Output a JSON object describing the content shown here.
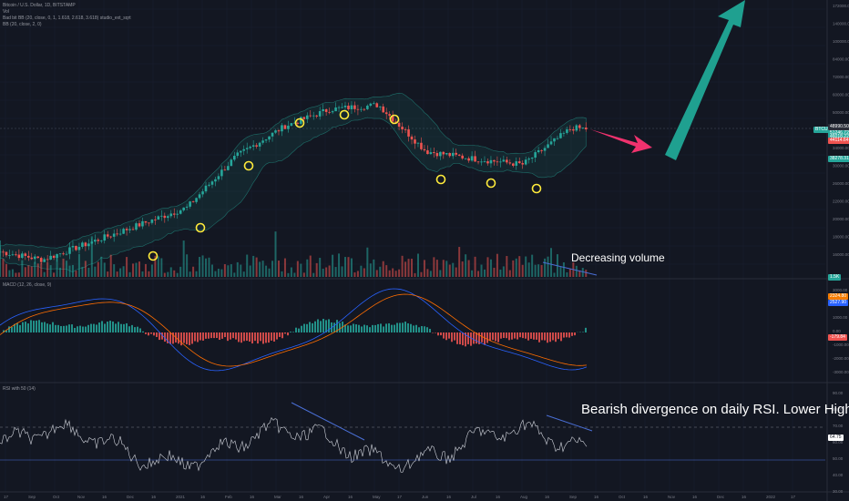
{
  "header": {
    "symbol_line": "Bitcoin / U.S. Dollar, 1D, BITSTAMP",
    "vol_line": "Vol",
    "boll_line": "Bad bit BB (20, close, 0, 1, 1.618, 2.618, 3.618) studio_ext_sqrt",
    "bb_line": "BB (20, close, 2, 0)"
  },
  "panes": {
    "macd_title": "MACD (12, 26, close, 9)",
    "rsi_title": "RSI with 50 (14)"
  },
  "annotations": {
    "volume_note": "Decreasing volume",
    "rsi_note": "Bearish divergence on daily RSI. Lower Highs"
  },
  "badges": [
    {
      "label": "BTCUSD",
      "color": "#26a69a"
    },
    {
      "label": "48990.50",
      "color": "#2a2e39"
    },
    {
      "label": "51246.72",
      "color": "#26a69a"
    },
    {
      "label": "46018.22",
      "color": "#26a69a"
    },
    {
      "label": "44114.64",
      "color": "#ef5350"
    },
    {
      "label": "38278.31",
      "color": "#26a69a"
    },
    {
      "label": "1.5K",
      "color": "#26a69a"
    },
    {
      "label": "2324.80",
      "color": "#f57c00"
    },
    {
      "label": "2527.90",
      "color": "#2962ff"
    },
    {
      "label": "-179.84",
      "color": "#ef5350"
    },
    {
      "label": "64.75",
      "color": "#ffffff"
    }
  ],
  "colors": {
    "up": "#26a69a",
    "down": "#ef5350",
    "band": "#1e6f6a",
    "circle": "#ffeb3b",
    "arrow_up": "#1fa090",
    "arrow_right": "#f0326e",
    "macd_line": "#2962ff",
    "signal_line": "#ff6d00",
    "rsi_line": "#d1d4dc",
    "trendline": "#4a6fd6"
  },
  "chart_data": [
    {
      "type": "candlestick",
      "title": "Bitcoin / U.S. Dollar, 1D, BITSTAMP",
      "scale": "log",
      "y_ticks": [
        "172000.00",
        "140000.00",
        "100000.00",
        "84000.00",
        "72000.00",
        "60000.00",
        "50000.00",
        "40000.00",
        "34000.00",
        "30000.00",
        "26000.00",
        "22000.00",
        "20000.00",
        "18000.00",
        "16000.00"
      ],
      "x_ticks": [
        "17",
        "Sep",
        "Oct",
        "Nov",
        "16",
        "Dec",
        "16",
        "2021",
        "16",
        "Feb",
        "16",
        "Mar",
        "16",
        "Apr",
        "16",
        "May",
        "17",
        "Jun",
        "16",
        "Jul",
        "16",
        "Aug",
        "16",
        "Sep",
        "16",
        "Oct",
        "16",
        "Nov",
        "16",
        "Dec",
        "16",
        "2022",
        "17"
      ],
      "key_points": [
        {
          "date": "Sep 2020",
          "close": 10500
        },
        {
          "date": "Dec 2020",
          "close": 19000
        },
        {
          "date": "Jan 2021",
          "close": 34000
        },
        {
          "date": "Feb 2021",
          "close": 48000
        },
        {
          "date": "Mar 2021",
          "close": 58000
        },
        {
          "date": "Apr 2021",
          "close": 61000
        },
        {
          "date": "May 2021",
          "close": 36000
        },
        {
          "date": "Jun 2021",
          "close": 33000
        },
        {
          "date": "Jul 2021",
          "close": 31000
        },
        {
          "date": "Aug 2021",
          "close": 47000
        }
      ]
    },
    {
      "type": "bar",
      "title": "MACD (12, 26, close, 9)",
      "y_ticks": [
        "3000.00",
        "2000.00",
        "1000.00",
        "0.00",
        "-1000.00",
        "-2000.00",
        "-3000.00"
      ]
    },
    {
      "type": "line",
      "title": "RSI with 50 (14)",
      "y_ticks": [
        "90.00",
        "80.00",
        "70.00",
        "60.00",
        "50.00",
        "40.00",
        "30.00"
      ],
      "levels": [
        70,
        50,
        30
      ]
    }
  ]
}
